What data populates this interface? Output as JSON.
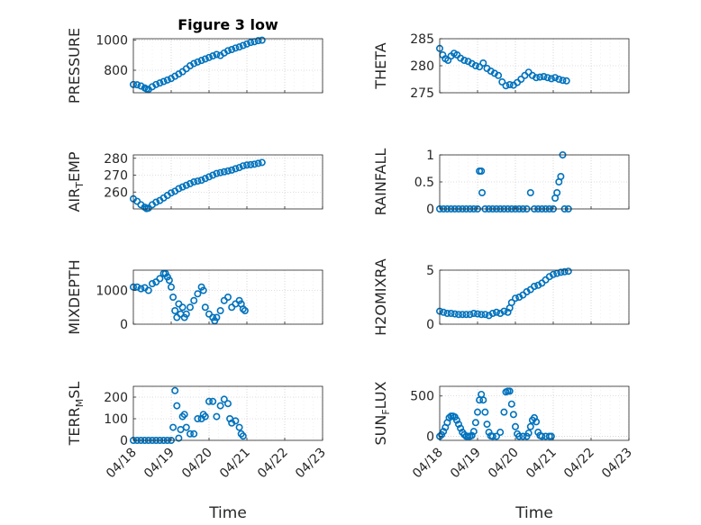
{
  "chart_data": [
    {
      "type": "scatter",
      "title": "Figure 3 low",
      "ylabel": "PRESSURE",
      "ylim": [
        650,
        1010
      ],
      "yticks": [
        800,
        1000
      ],
      "xticks": [
        "04/18",
        "04/19",
        "04/20",
        "04/21",
        "04/22",
        "04/23"
      ],
      "xlim": [
        0,
        5
      ],
      "grid": true,
      "points": [
        [
          0.0,
          705
        ],
        [
          0.1,
          703
        ],
        [
          0.2,
          695
        ],
        [
          0.3,
          682
        ],
        [
          0.35,
          675
        ],
        [
          0.4,
          672
        ],
        [
          0.5,
          690
        ],
        [
          0.6,
          705
        ],
        [
          0.7,
          715
        ],
        [
          0.8,
          725
        ],
        [
          0.9,
          735
        ],
        [
          1.0,
          745
        ],
        [
          1.1,
          760
        ],
        [
          1.2,
          775
        ],
        [
          1.3,
          790
        ],
        [
          1.4,
          810
        ],
        [
          1.5,
          830
        ],
        [
          1.6,
          845
        ],
        [
          1.7,
          855
        ],
        [
          1.8,
          865
        ],
        [
          1.9,
          875
        ],
        [
          2.0,
          885
        ],
        [
          2.1,
          895
        ],
        [
          2.2,
          905
        ],
        [
          2.3,
          898
        ],
        [
          2.4,
          915
        ],
        [
          2.5,
          930
        ],
        [
          2.6,
          938
        ],
        [
          2.7,
          948
        ],
        [
          2.8,
          955
        ],
        [
          2.9,
          965
        ],
        [
          3.0,
          975
        ],
        [
          3.1,
          985
        ],
        [
          3.2,
          990
        ],
        [
          3.3,
          997
        ],
        [
          3.4,
          1000
        ]
      ]
    },
    {
      "type": "scatter",
      "title": "",
      "ylabel": "THETA",
      "ylim": [
        275,
        285
      ],
      "yticks": [
        275,
        280,
        285
      ],
      "xticks": [
        "04/18",
        "04/19",
        "04/20",
        "04/21",
        "04/22",
        "04/23"
      ],
      "xlim": [
        0,
        5
      ],
      "grid": true,
      "points": [
        [
          0.0,
          283.2
        ],
        [
          0.08,
          282.0
        ],
        [
          0.15,
          281.3
        ],
        [
          0.22,
          281.0
        ],
        [
          0.3,
          281.8
        ],
        [
          0.38,
          282.3
        ],
        [
          0.46,
          282.0
        ],
        [
          0.55,
          281.4
        ],
        [
          0.65,
          281.0
        ],
        [
          0.75,
          280.8
        ],
        [
          0.85,
          280.4
        ],
        [
          0.95,
          280.0
        ],
        [
          1.05,
          279.8
        ],
        [
          1.15,
          280.5
        ],
        [
          1.25,
          279.5
        ],
        [
          1.35,
          279.0
        ],
        [
          1.45,
          278.6
        ],
        [
          1.55,
          278.2
        ],
        [
          1.65,
          277.0
        ],
        [
          1.75,
          276.3
        ],
        [
          1.85,
          276.5
        ],
        [
          1.95,
          276.4
        ],
        [
          2.05,
          276.9
        ],
        [
          2.15,
          277.5
        ],
        [
          2.25,
          278.2
        ],
        [
          2.35,
          278.8
        ],
        [
          2.45,
          278.2
        ],
        [
          2.55,
          277.8
        ],
        [
          2.65,
          277.9
        ],
        [
          2.75,
          278.0
        ],
        [
          2.85,
          277.8
        ],
        [
          2.95,
          277.6
        ],
        [
          3.05,
          277.8
        ],
        [
          3.15,
          277.5
        ],
        [
          3.25,
          277.3
        ],
        [
          3.35,
          277.2
        ]
      ]
    },
    {
      "type": "scatter",
      "title": "",
      "ylabel": "AIR_TEMP",
      "ylabel_main": "AIR",
      "ylabel_sub": "T",
      "ylabel_rest": "EMP",
      "ylim": [
        250,
        282
      ],
      "yticks": [
        260,
        270,
        280
      ],
      "xticks": [
        "04/18",
        "04/19",
        "04/20",
        "04/21",
        "04/22",
        "04/23"
      ],
      "xlim": [
        0,
        5
      ],
      "grid": true,
      "points": [
        [
          0.0,
          256
        ],
        [
          0.1,
          254.5
        ],
        [
          0.2,
          252.5
        ],
        [
          0.3,
          251
        ],
        [
          0.35,
          250.2
        ],
        [
          0.4,
          250.5
        ],
        [
          0.5,
          252.5
        ],
        [
          0.6,
          254
        ],
        [
          0.7,
          255
        ],
        [
          0.8,
          256.5
        ],
        [
          0.9,
          258
        ],
        [
          1.0,
          259.5
        ],
        [
          1.1,
          260.5
        ],
        [
          1.2,
          262
        ],
        [
          1.3,
          263
        ],
        [
          1.4,
          264
        ],
        [
          1.5,
          265
        ],
        [
          1.6,
          266
        ],
        [
          1.7,
          266.5
        ],
        [
          1.8,
          267
        ],
        [
          1.9,
          268
        ],
        [
          2.0,
          269
        ],
        [
          2.1,
          270
        ],
        [
          2.2,
          271
        ],
        [
          2.3,
          271.5
        ],
        [
          2.4,
          272
        ],
        [
          2.5,
          272.5
        ],
        [
          2.6,
          273
        ],
        [
          2.7,
          273.8
        ],
        [
          2.8,
          274.5
        ],
        [
          2.9,
          275.5
        ],
        [
          3.0,
          276
        ],
        [
          3.1,
          276.2
        ],
        [
          3.2,
          276.5
        ],
        [
          3.3,
          277
        ],
        [
          3.4,
          277.5
        ]
      ]
    },
    {
      "type": "scatter",
      "title": "",
      "ylabel": "RAINFALL",
      "ylim": [
        0,
        1
      ],
      "yticks": [
        0,
        0.5,
        1
      ],
      "ytick_labels": [
        "0",
        "0.5",
        "1"
      ],
      "xticks": [
        "04/18",
        "04/19",
        "04/20",
        "04/21",
        "04/22",
        "04/23"
      ],
      "xlim": [
        0,
        5
      ],
      "grid": true,
      "points": [
        [
          0.0,
          0
        ],
        [
          0.1,
          0
        ],
        [
          0.2,
          0
        ],
        [
          0.3,
          0
        ],
        [
          0.4,
          0
        ],
        [
          0.5,
          0
        ],
        [
          0.6,
          0
        ],
        [
          0.7,
          0
        ],
        [
          0.8,
          0
        ],
        [
          0.9,
          0
        ],
        [
          1.0,
          0
        ],
        [
          1.05,
          0.7
        ],
        [
          1.1,
          0.7
        ],
        [
          1.12,
          0.3
        ],
        [
          1.2,
          0
        ],
        [
          1.3,
          0
        ],
        [
          1.4,
          0
        ],
        [
          1.5,
          0
        ],
        [
          1.6,
          0
        ],
        [
          1.7,
          0
        ],
        [
          1.8,
          0
        ],
        [
          1.9,
          0
        ],
        [
          2.0,
          0
        ],
        [
          2.1,
          0
        ],
        [
          2.2,
          0
        ],
        [
          2.3,
          0
        ],
        [
          2.4,
          0.3
        ],
        [
          2.5,
          0
        ],
        [
          2.6,
          0
        ],
        [
          2.7,
          0
        ],
        [
          2.8,
          0
        ],
        [
          2.9,
          0
        ],
        [
          3.0,
          0
        ],
        [
          3.05,
          0.2
        ],
        [
          3.1,
          0.3
        ],
        [
          3.15,
          0.5
        ],
        [
          3.2,
          0.6
        ],
        [
          3.25,
          1.0
        ],
        [
          3.3,
          0
        ],
        [
          3.4,
          0
        ]
      ]
    },
    {
      "type": "scatter",
      "title": "",
      "ylabel": "MIXDEPTH",
      "ylim": [
        0,
        1600
      ],
      "yticks": [
        0,
        1000
      ],
      "xticks": [
        "04/18",
        "04/19",
        "04/20",
        "04/21",
        "04/22",
        "04/23"
      ],
      "xlim": [
        0,
        5
      ],
      "grid": true,
      "points": [
        [
          0.0,
          1100
        ],
        [
          0.1,
          1100
        ],
        [
          0.2,
          1050
        ],
        [
          0.3,
          1080
        ],
        [
          0.4,
          1000
        ],
        [
          0.5,
          1200
        ],
        [
          0.6,
          1250
        ],
        [
          0.7,
          1350
        ],
        [
          0.8,
          1500
        ],
        [
          0.85,
          1500
        ],
        [
          0.9,
          1400
        ],
        [
          0.95,
          1300
        ],
        [
          1.0,
          1100
        ],
        [
          1.05,
          800
        ],
        [
          1.1,
          400
        ],
        [
          1.15,
          200
        ],
        [
          1.2,
          600
        ],
        [
          1.25,
          300
        ],
        [
          1.3,
          500
        ],
        [
          1.35,
          200
        ],
        [
          1.4,
          300
        ],
        [
          1.5,
          500
        ],
        [
          1.6,
          700
        ],
        [
          1.7,
          900
        ],
        [
          1.8,
          1100
        ],
        [
          1.85,
          1000
        ],
        [
          1.9,
          500
        ],
        [
          2.0,
          300
        ],
        [
          2.1,
          200
        ],
        [
          2.15,
          100
        ],
        [
          2.2,
          200
        ],
        [
          2.3,
          400
        ],
        [
          2.4,
          700
        ],
        [
          2.5,
          800
        ],
        [
          2.6,
          500
        ],
        [
          2.7,
          600
        ],
        [
          2.8,
          700
        ],
        [
          2.85,
          600
        ],
        [
          2.9,
          450
        ],
        [
          2.95,
          400
        ]
      ]
    },
    {
      "type": "scatter",
      "title": "",
      "ylabel": "H2OMIXRA",
      "ylim": [
        0,
        5
      ],
      "yticks": [
        0,
        5
      ],
      "xticks": [
        "04/18",
        "04/19",
        "04/20",
        "04/21",
        "04/22",
        "04/23"
      ],
      "xlim": [
        0,
        5
      ],
      "grid": true,
      "points": [
        [
          0.0,
          1.2
        ],
        [
          0.1,
          1.1
        ],
        [
          0.2,
          1.0
        ],
        [
          0.3,
          1.0
        ],
        [
          0.4,
          0.95
        ],
        [
          0.5,
          0.9
        ],
        [
          0.6,
          0.9
        ],
        [
          0.7,
          0.9
        ],
        [
          0.8,
          0.9
        ],
        [
          0.9,
          1.0
        ],
        [
          1.0,
          0.95
        ],
        [
          1.1,
          0.9
        ],
        [
          1.2,
          0.9
        ],
        [
          1.3,
          0.8
        ],
        [
          1.4,
          1.0
        ],
        [
          1.5,
          1.1
        ],
        [
          1.6,
          1.0
        ],
        [
          1.7,
          1.2
        ],
        [
          1.8,
          1.1
        ],
        [
          1.85,
          1.5
        ],
        [
          1.9,
          2.0
        ],
        [
          2.0,
          2.4
        ],
        [
          2.1,
          2.5
        ],
        [
          2.2,
          2.7
        ],
        [
          2.3,
          3.0
        ],
        [
          2.4,
          3.2
        ],
        [
          2.5,
          3.5
        ],
        [
          2.6,
          3.6
        ],
        [
          2.7,
          3.8
        ],
        [
          2.8,
          4.1
        ],
        [
          2.9,
          4.4
        ],
        [
          3.0,
          4.6
        ],
        [
          3.1,
          4.7
        ],
        [
          3.2,
          4.8
        ],
        [
          3.3,
          4.85
        ],
        [
          3.4,
          4.9
        ]
      ]
    },
    {
      "type": "scatter",
      "title": "",
      "ylabel": "TERR_MSL",
      "ylabel_main": "TERR",
      "ylabel_sub": "M",
      "ylabel_rest": "SL",
      "ylim": [
        0,
        250
      ],
      "yticks": [
        0,
        100,
        200
      ],
      "xticks": [
        "04/18",
        "04/19",
        "04/20",
        "04/21",
        "04/22",
        "04/23"
      ],
      "xlim": [
        0,
        5
      ],
      "grid": true,
      "points": [
        [
          0.0,
          0
        ],
        [
          0.1,
          0
        ],
        [
          0.2,
          0
        ],
        [
          0.3,
          0
        ],
        [
          0.4,
          0
        ],
        [
          0.5,
          0
        ],
        [
          0.6,
          0
        ],
        [
          0.7,
          0
        ],
        [
          0.8,
          0
        ],
        [
          0.9,
          0
        ],
        [
          1.0,
          0
        ],
        [
          1.05,
          60
        ],
        [
          1.1,
          230
        ],
        [
          1.15,
          160
        ],
        [
          1.2,
          10
        ],
        [
          1.25,
          50
        ],
        [
          1.3,
          110
        ],
        [
          1.35,
          120
        ],
        [
          1.4,
          60
        ],
        [
          1.5,
          30
        ],
        [
          1.6,
          30
        ],
        [
          1.7,
          100
        ],
        [
          1.8,
          100
        ],
        [
          1.85,
          120
        ],
        [
          1.9,
          110
        ],
        [
          2.0,
          180
        ],
        [
          2.1,
          180
        ],
        [
          2.2,
          110
        ],
        [
          2.3,
          160
        ],
        [
          2.4,
          190
        ],
        [
          2.5,
          170
        ],
        [
          2.55,
          100
        ],
        [
          2.6,
          80
        ],
        [
          2.7,
          90
        ],
        [
          2.8,
          60
        ],
        [
          2.85,
          30
        ],
        [
          2.9,
          20
        ]
      ]
    },
    {
      "type": "scatter",
      "title": "",
      "ylabel": "SUN_FLUX",
      "ylabel_main": "SUN",
      "ylabel_sub": "F",
      "ylabel_rest": "LUX",
      "ylim": [
        -50,
        620
      ],
      "yticks": [
        0,
        500
      ],
      "xticks": [
        "04/18",
        "04/19",
        "04/20",
        "04/21",
        "04/22",
        "04/23"
      ],
      "xlim": [
        0,
        5
      ],
      "grid": true,
      "points": [
        [
          0.0,
          0
        ],
        [
          0.05,
          20
        ],
        [
          0.1,
          60
        ],
        [
          0.15,
          110
        ],
        [
          0.2,
          170
        ],
        [
          0.25,
          230
        ],
        [
          0.3,
          250
        ],
        [
          0.35,
          250
        ],
        [
          0.4,
          240
        ],
        [
          0.45,
          200
        ],
        [
          0.5,
          150
        ],
        [
          0.55,
          100
        ],
        [
          0.6,
          50
        ],
        [
          0.65,
          20
        ],
        [
          0.7,
          0
        ],
        [
          0.75,
          0
        ],
        [
          0.8,
          0
        ],
        [
          0.85,
          10
        ],
        [
          0.9,
          60
        ],
        [
          0.95,
          170
        ],
        [
          1.0,
          300
        ],
        [
          1.05,
          450
        ],
        [
          1.1,
          520
        ],
        [
          1.15,
          450
        ],
        [
          1.2,
          300
        ],
        [
          1.25,
          150
        ],
        [
          1.3,
          50
        ],
        [
          1.35,
          5
        ],
        [
          1.4,
          0
        ],
        [
          1.5,
          0
        ],
        [
          1.6,
          50
        ],
        [
          1.7,
          300
        ],
        [
          1.75,
          550
        ],
        [
          1.8,
          560
        ],
        [
          1.85,
          560
        ],
        [
          1.9,
          400
        ],
        [
          1.95,
          270
        ],
        [
          2.0,
          120
        ],
        [
          2.05,
          30
        ],
        [
          2.1,
          0
        ],
        [
          2.2,
          0
        ],
        [
          2.3,
          0
        ],
        [
          2.35,
          40
        ],
        [
          2.4,
          120
        ],
        [
          2.45,
          200
        ],
        [
          2.5,
          230
        ],
        [
          2.55,
          180
        ],
        [
          2.6,
          50
        ],
        [
          2.65,
          10
        ],
        [
          2.7,
          0
        ],
        [
          2.8,
          0
        ],
        [
          2.9,
          0
        ],
        [
          2.95,
          0
        ]
      ]
    }
  ],
  "xaxis_label": "Time",
  "marker_color": "#0072BD"
}
